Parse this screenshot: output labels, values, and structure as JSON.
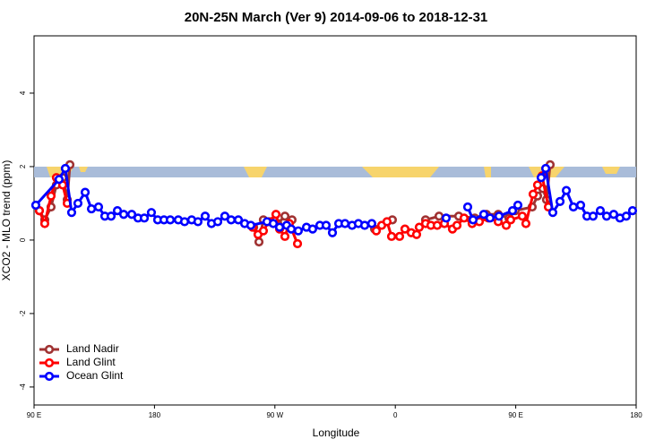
{
  "chart_data": {
    "type": "line",
    "title": "20N-25N March (Ver 9)   2014-09-06 to 2018-12-31",
    "xlabel": "Longitude",
    "ylabel": "XCO2 - MLO trend (ppm)",
    "xlim": [
      90,
      540
    ],
    "ylim": [
      -4.49,
      5.56
    ],
    "xticks": [
      {
        "value": 90,
        "label": "90 E"
      },
      {
        "value": 180,
        "label": "180"
      },
      {
        "value": 270,
        "label": "90 W"
      },
      {
        "value": 360,
        "label": "0"
      },
      {
        "value": 450,
        "label": "90 E"
      },
      {
        "value": 540,
        "label": "180"
      }
    ],
    "yticks": [
      -4,
      -2,
      0,
      2,
      4
    ],
    "legend": "bottom-left",
    "series": [
      {
        "name": "Land Nadir",
        "color": "#a03232",
        "x": [
          94.0,
          98.0,
          102.7,
          106.7,
          111.4,
          114.8,
          116.8,
          null,
          254.1,
          258.1,
          261.4,
          266.8,
          272.1,
          277.5,
          282.8,
          null,
          344.5,
          353.8,
          357.8,
          null,
          382.6,
          392.7,
          407.4,
          419.4,
          428.1,
          436.9,
          444.9,
          449.6,
          462.3,
          466.3,
          470.3,
          473.0,
          475.7
        ],
        "values": [
          0.8,
          0.55,
          0.9,
          1.5,
          1.7,
          1.1,
          2.05,
          null,
          0.35,
          -0.05,
          0.55,
          0.5,
          0.45,
          0.65,
          0.55,
          null,
          0.3,
          0.5,
          0.55,
          null,
          0.55,
          0.65,
          0.65,
          0.6,
          0.7,
          0.7,
          0.6,
          0.8,
          0.9,
          1.2,
          1.4,
          1.1,
          2.05
        ]
      },
      {
        "name": "Land Glint",
        "color": "#ff0000",
        "x": [
          94.0,
          98.0,
          102.7,
          106.7,
          111.4,
          114.8,
          null,
          253.4,
          257.4,
          261.4,
          265.4,
          270.8,
          273.5,
          277.5,
          280.8,
          286.9,
          null,
          345.8,
          349.8,
          353.8,
          357.2,
          363.2,
          367.2,
          371.9,
          375.9,
          377.9,
          382.6,
          386.6,
          391.3,
          396.7,
          402.7,
          406.1,
          411.4,
          417.4,
          422.8,
          429.5,
          436.9,
          442.9,
          446.2,
          454.9,
          457.6,
          463.0,
          466.3,
          469.7,
          474.4
        ],
        "values": [
          0.8,
          0.45,
          1.2,
          1.7,
          1.5,
          1.0,
          null,
          0.35,
          0.15,
          0.25,
          0.5,
          0.7,
          0.3,
          0.1,
          0.45,
          -0.1,
          null,
          0.25,
          0.4,
          0.5,
          0.1,
          0.1,
          0.3,
          0.2,
          0.15,
          0.35,
          0.45,
          0.4,
          0.4,
          0.45,
          0.3,
          0.4,
          0.6,
          0.45,
          0.5,
          0.6,
          0.5,
          0.4,
          0.55,
          0.65,
          0.45,
          1.25,
          1.5,
          1.75,
          0.9
        ]
      },
      {
        "name": "Ocean Glint",
        "color": "#0000ff",
        "x": [
          91.3,
          108.7,
          113.4,
          118.1,
          122.8,
          128.2,
          132.9,
          138.2,
          142.9,
          147.6,
          152.3,
          157.0,
          163.0,
          167.7,
          172.4,
          177.7,
          182.4,
          187.1,
          191.8,
          197.8,
          202.5,
          207.8,
          212.5,
          217.9,
          222.6,
          227.3,
          232.6,
          237.3,
          242.7,
          247.4,
          252.0,
          264.1,
          268.8,
          273.5,
          278.8,
          282.2,
          287.5,
          293.6,
          298.2,
          303.6,
          308.3,
          313.0,
          317.7,
          322.4,
          327.7,
          332.4,
          337.1,
          342.4,
          null,
          398.0,
          null,
          414.1,
          418.1,
          426.1,
          430.8,
          437.5,
          447.6,
          451.6,
          null,
          469.0,
          472.4,
          477.7,
          483.1,
          487.8,
          493.1,
          498.5,
          503.2,
          507.8,
          513.2,
          517.9,
          523.2,
          527.9,
          532.6,
          537.3
        ],
        "values": [
          0.95,
          1.65,
          1.95,
          0.75,
          1.0,
          1.3,
          0.85,
          0.9,
          0.65,
          0.65,
          0.8,
          0.7,
          0.7,
          0.6,
          0.6,
          0.75,
          0.55,
          0.55,
          0.55,
          0.55,
          0.5,
          0.55,
          0.5,
          0.65,
          0.45,
          0.5,
          0.65,
          0.55,
          0.55,
          0.45,
          0.4,
          0.5,
          0.45,
          0.35,
          0.4,
          0.3,
          0.25,
          0.35,
          0.3,
          0.4,
          0.4,
          0.2,
          0.45,
          0.45,
          0.4,
          0.45,
          0.4,
          0.45,
          null,
          0.6,
          null,
          0.9,
          0.55,
          0.7,
          0.6,
          0.65,
          0.8,
          0.95,
          null,
          1.7,
          1.95,
          0.75,
          1.05,
          1.35,
          0.9,
          0.95,
          0.65,
          0.65,
          0.8,
          0.65,
          0.7,
          0.6,
          0.65,
          0.8
        ]
      }
    ]
  }
}
